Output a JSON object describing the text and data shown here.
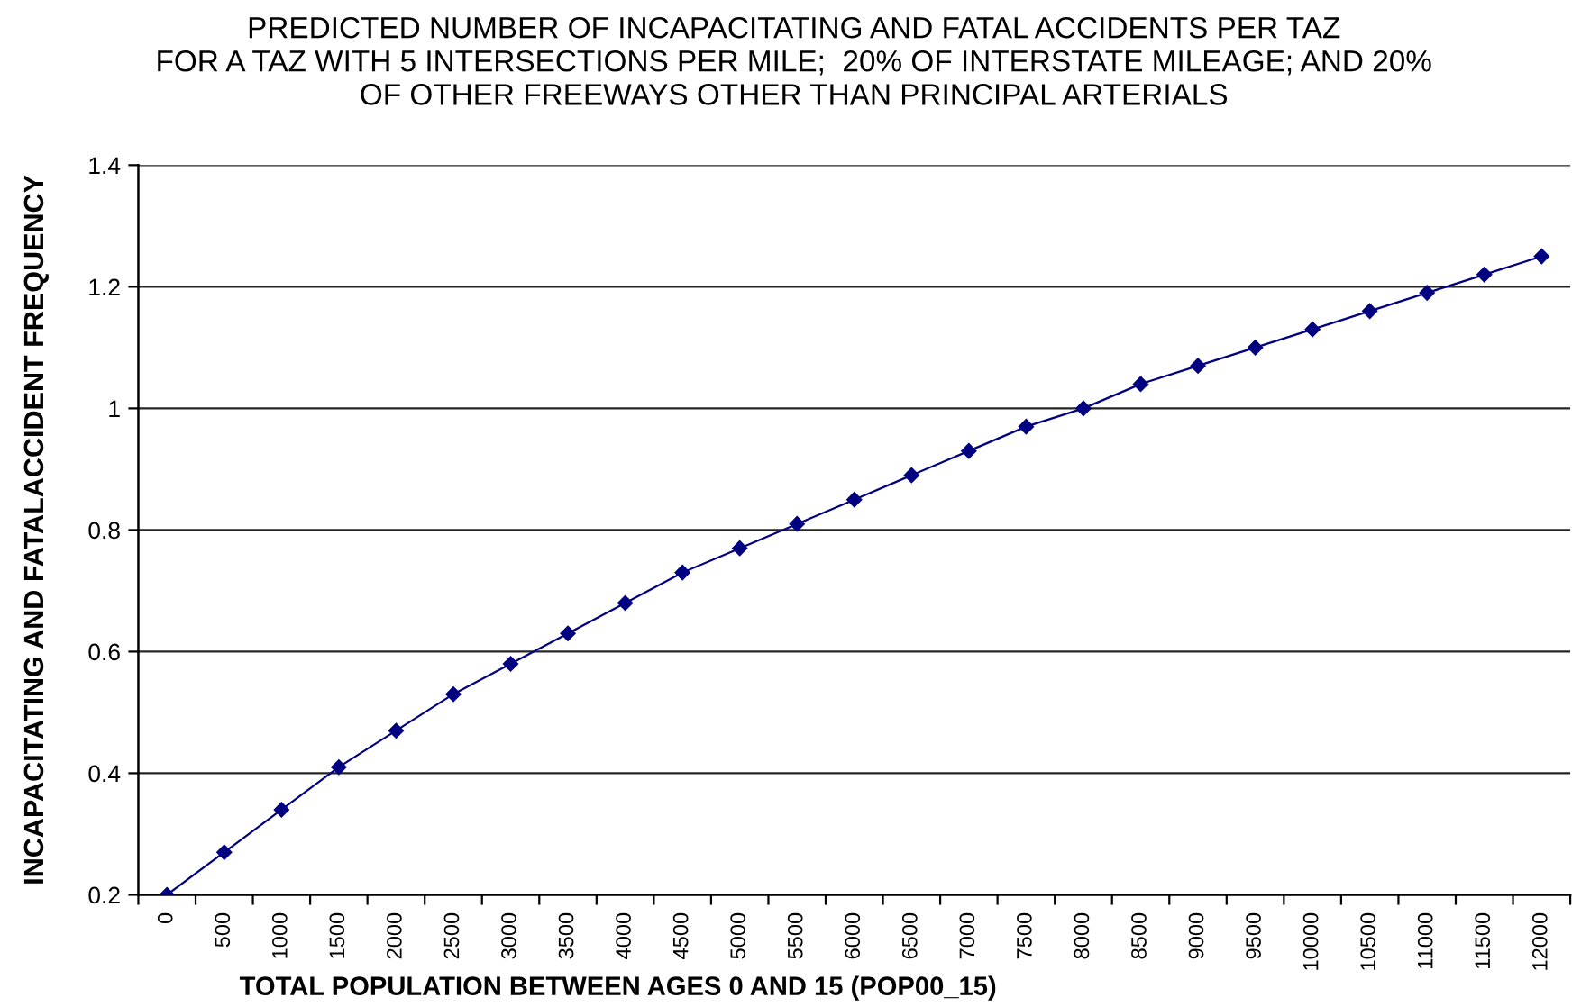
{
  "chart_data": {
    "type": "line",
    "title": "PREDICTED NUMBER OF INCAPACITATING AND FATAL ACCIDENTS PER TAZ\nFOR A TAZ WITH 5 INTERSECTIONS PER MILE;  20% OF INTERSTATE MILEAGE; AND 20%\nOF OTHER FREEWAYS OTHER THAN PRINCIPAL ARTERIALS",
    "xlabel": "TOTAL POPULATION BETWEEN AGES 0 AND 15 (POP00_15)",
    "ylabel": "INCAPACITATING AND FATALACCIDENT FREQUENCY",
    "categories": [
      "0",
      "500",
      "1000",
      "1500",
      "2000",
      "2500",
      "3000",
      "3500",
      "4000",
      "4500",
      "5000",
      "5500",
      "6000",
      "6500",
      "7000",
      "7500",
      "8000",
      "8500",
      "9000",
      "9500",
      "10000",
      "10500",
      "11000",
      "11500",
      "12000"
    ],
    "values": [
      0.2,
      0.27,
      0.34,
      0.41,
      0.47,
      0.53,
      0.58,
      0.63,
      0.68,
      0.73,
      0.77,
      0.81,
      0.85,
      0.89,
      0.93,
      0.97,
      1.0,
      1.04,
      1.07,
      1.1,
      1.13,
      1.16,
      1.19,
      1.22,
      1.25
    ],
    "color": "#000080",
    "ylim": [
      0.2,
      1.4
    ],
    "yticks": [
      0.2,
      0.4,
      0.6,
      0.8,
      1,
      1.2,
      1.4
    ],
    "grid": "y",
    "legend": false,
    "marker": "diamond",
    "line_style": "solid"
  }
}
